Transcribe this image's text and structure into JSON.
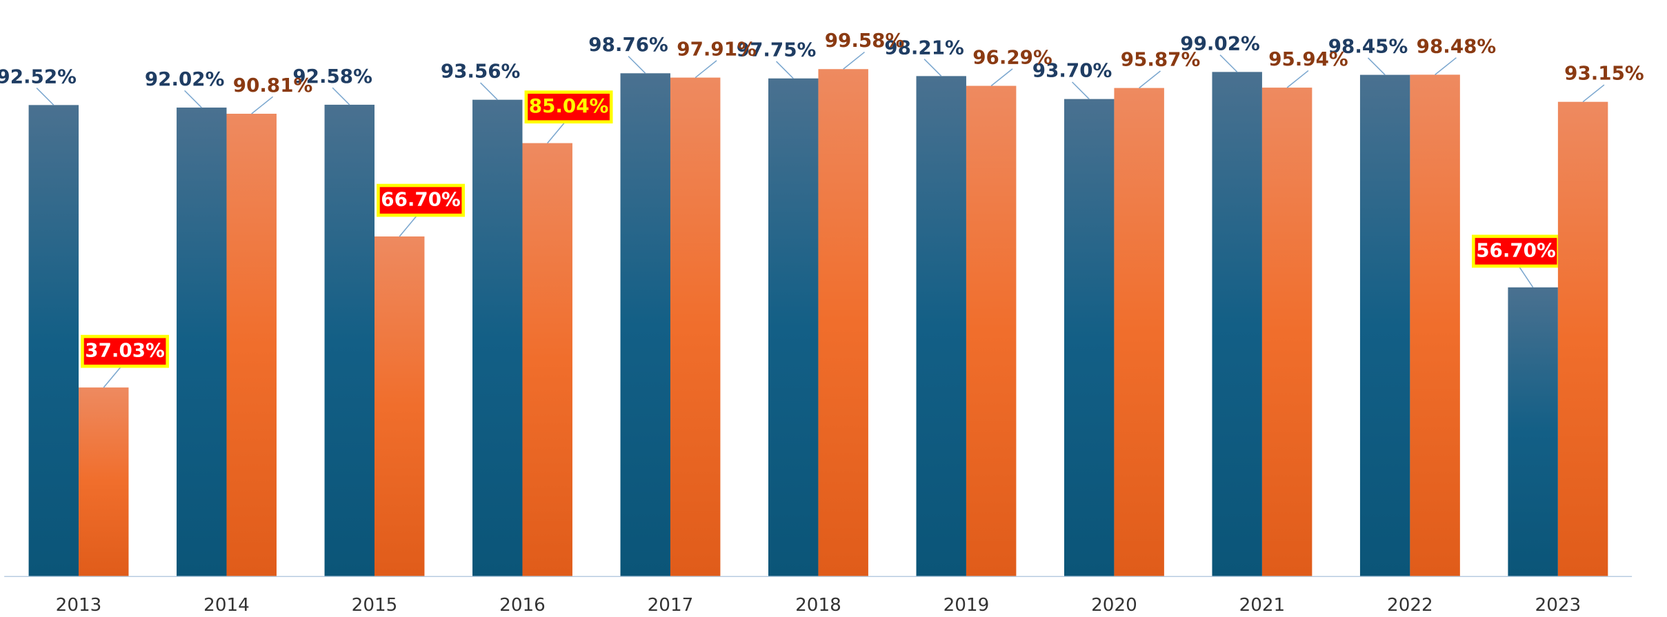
{
  "chart_data": {
    "type": "bar",
    "categories": [
      "2013",
      "2014",
      "2015",
      "2016",
      "2017",
      "2018",
      "2019",
      "2020",
      "2021",
      "2022",
      "2023"
    ],
    "series": [
      {
        "color": "#135b80",
        "label_color": "#1f3d63",
        "values": [
          92.52,
          92.02,
          92.58,
          93.56,
          98.76,
          97.75,
          98.21,
          93.7,
          99.02,
          98.45,
          56.7
        ],
        "value_labels": [
          "92.52%",
          "92.02%",
          "92.58%",
          "93.56%",
          "98.76%",
          "97.75%",
          "98.21%",
          "93.70%",
          "99.02%",
          "98.45%",
          "56.70%"
        ],
        "highlight": [
          10
        ]
      },
      {
        "color": "#ee6a2a",
        "label_color": "#8a3a12",
        "values": [
          37.03,
          90.81,
          66.7,
          85.04,
          97.91,
          99.58,
          96.29,
          95.87,
          95.94,
          98.48,
          93.15
        ],
        "value_labels": [
          "37.03%",
          "90.81%",
          "66.70%",
          "85.04%",
          "97.91%",
          "99.58%",
          "96.29%",
          "95.87%",
          "95.94%",
          "98.48%",
          "93.15%"
        ],
        "highlight": [
          0,
          2,
          3
        ]
      }
    ],
    "ylim": [
      0,
      100
    ],
    "grid": false
  }
}
